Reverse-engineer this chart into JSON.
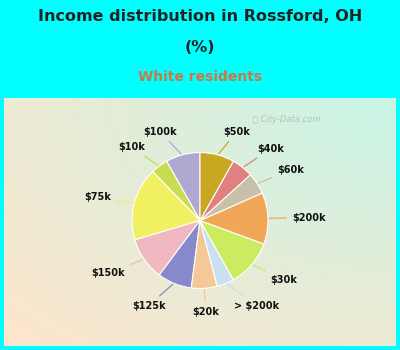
{
  "title_line1": "Income distribution in Rossford, OH",
  "title_line2": "(%)",
  "subtitle": "White residents",
  "bg_color": "#00FFFF",
  "chart_bg_color": "#d8f0e8",
  "watermark": "City-Data.com",
  "labels": [
    "$100k",
    "$10k",
    "$75k",
    "$150k",
    "$125k",
    "$20k",
    "> $200k",
    "$30k",
    "$200k",
    "$60k",
    "$40k",
    "$50k"
  ],
  "values": [
    8,
    4,
    17,
    10,
    8,
    6,
    4,
    11,
    12,
    5,
    5,
    8
  ],
  "colors": [
    "#b0a8d0",
    "#c8dc50",
    "#f0f060",
    "#f0b8c0",
    "#8888cc",
    "#f5c898",
    "#c8e0f0",
    "#ccec60",
    "#f0a858",
    "#c8c0a8",
    "#e08080",
    "#c8a820"
  ],
  "title_fontsize": 11.5,
  "subtitle_fontsize": 10,
  "subtitle_color": "#cc7744",
  "label_fontsize": 7,
  "title_color": "#222222"
}
